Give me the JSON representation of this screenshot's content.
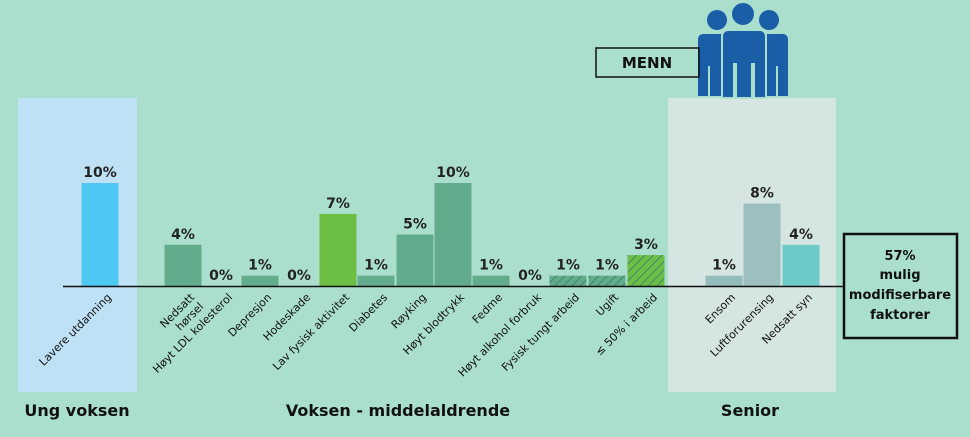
{
  "chart_data": {
    "type": "bar",
    "unit": "%",
    "categories": [
      "Lavere utdanning",
      "Nedsatt\nhørsel",
      "Høyt LDL kolesterol",
      "Depresjon",
      "Hodeskade",
      "Lav fysisk aktivitet",
      "Diabetes",
      "Røyking",
      "Høyt blodtrykk",
      "Fedme",
      "Høyt alkohol forbruk",
      "Fysisk tungt arbeid",
      "Ugift",
      "≤ 50% i arbeid",
      "Ensom",
      "Luftforurensing",
      "Nedsatt syn"
    ],
    "values": [
      10,
      4,
      0,
      1,
      0,
      7,
      1,
      5,
      10,
      1,
      0,
      1,
      1,
      3,
      1,
      8,
      4
    ],
    "labels": [
      "10%",
      "4%",
      "0%",
      "1%",
      "0%",
      "7%",
      "1%",
      "5%",
      "10%",
      "1%",
      "0%",
      "1%",
      "1%",
      "3%",
      "1%",
      "8%",
      "4%"
    ],
    "colors": [
      "#4ec8f2",
      "#63ab8d",
      "#63ab8d",
      "#63ab8d",
      "#63ab8d",
      "#6cbe45",
      "#63ab8d",
      "#63ab8d",
      "#63ab8d",
      "#63ab8d",
      "#63ab8d",
      "#63ab8d",
      "#63ab8d",
      "#6cbe45",
      "#93bcbc",
      "#9cc0c0",
      "#6ecac6"
    ],
    "hatched": [
      false,
      false,
      false,
      false,
      false,
      false,
      false,
      false,
      false,
      false,
      false,
      true,
      true,
      true,
      false,
      false,
      false
    ],
    "groups": [
      {
        "name": "Ung voksen",
        "background": "#bfe1f5"
      },
      {
        "name": "Voksen - middelaldrende",
        "background": ""
      },
      {
        "name": "Senior",
        "background": "#d5e5e2"
      }
    ],
    "summary": [
      "57%",
      "mulig",
      "modifiserbare",
      "faktorer"
    ],
    "badge": "MENN",
    "ylim": [
      0,
      10
    ],
    "grid": false,
    "legend": "none"
  }
}
